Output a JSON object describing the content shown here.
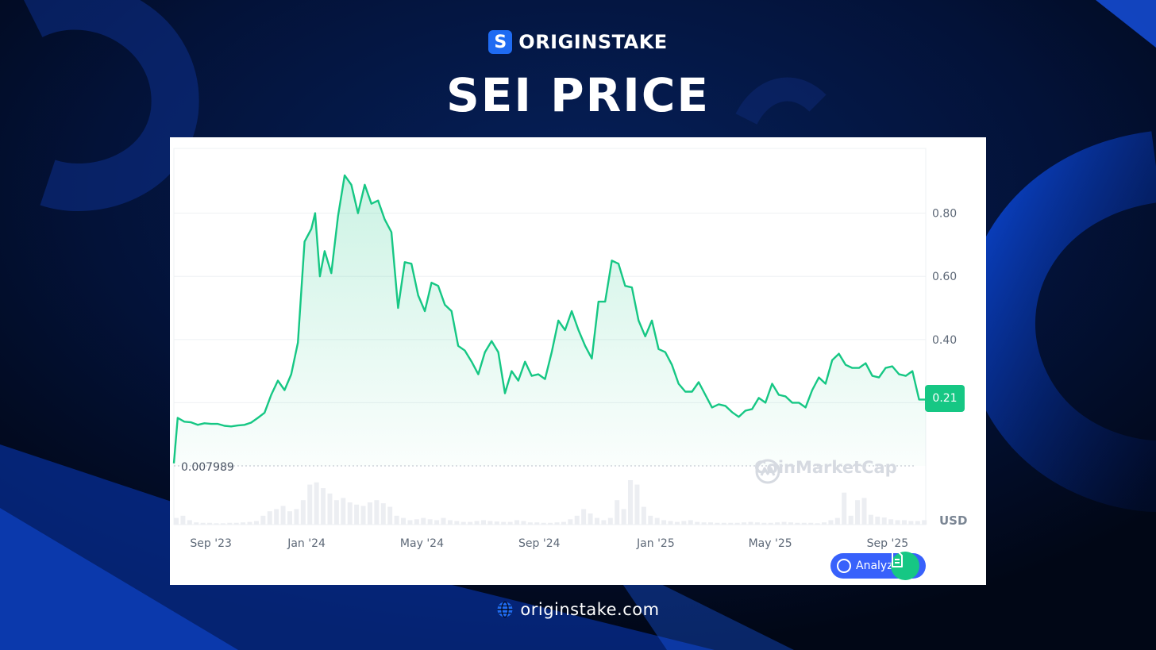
{
  "brand": {
    "logo_letter": "S",
    "name": "ORIGINSTAKE",
    "color": "#1f6bf2"
  },
  "title": "SEI PRICE",
  "footer": {
    "icon": "globe-icon",
    "url": "originstake.com"
  },
  "chart_data": {
    "type": "area",
    "title": "",
    "xlabel": "",
    "ylabel": "USD",
    "y_ticks": [
      "0.80",
      "0.60",
      "0.40"
    ],
    "y_tick_values": [
      0.8,
      0.6,
      0.4,
      0.2
    ],
    "ylim": [
      0.0,
      0.98
    ],
    "x_tick_labels": [
      "Sep '23",
      "Jan '24",
      "May '24",
      "Sep '24",
      "Jan '25",
      "May '25",
      "Sep '25"
    ],
    "x_tick_dates": [
      "2023-09-01",
      "2024-01-01",
      "2024-05-01",
      "2024-09-01",
      "2025-01-01",
      "2025-05-01",
      "2025-09-01"
    ],
    "current_price": "0.21",
    "min_label": "0.007989",
    "line_color": "#16c784",
    "grid": true,
    "watermark": "CoinMarketCap",
    "analyze_label": "Analyze",
    "series": [
      {
        "dates": [
          "2023-08-15",
          "2023-08-19",
          "2023-08-26",
          "2023-09-02",
          "2023-09-09",
          "2023-09-16",
          "2023-09-23",
          "2023-09-30",
          "2023-10-07",
          "2023-10-14",
          "2023-10-21",
          "2023-10-28",
          "2023-11-04",
          "2023-11-11",
          "2023-11-18",
          "2023-11-25",
          "2023-12-02",
          "2023-12-09",
          "2023-12-16",
          "2023-12-23",
          "2023-12-30",
          "2024-01-06",
          "2024-01-10",
          "2024-01-15",
          "2024-01-20",
          "2024-01-27",
          "2024-02-03",
          "2024-02-10",
          "2024-02-17",
          "2024-02-24",
          "2024-03-02",
          "2024-03-09",
          "2024-03-16",
          "2024-03-23",
          "2024-03-30",
          "2024-04-06",
          "2024-04-13",
          "2024-04-20",
          "2024-04-27",
          "2024-05-04",
          "2024-05-11",
          "2024-05-18",
          "2024-05-25",
          "2024-06-01",
          "2024-06-08",
          "2024-06-15",
          "2024-06-22",
          "2024-06-29",
          "2024-07-06",
          "2024-07-13",
          "2024-07-20",
          "2024-07-27",
          "2024-08-03",
          "2024-08-10",
          "2024-08-17",
          "2024-08-24",
          "2024-08-31",
          "2024-09-07",
          "2024-09-14",
          "2024-09-21",
          "2024-09-28",
          "2024-10-05",
          "2024-10-12",
          "2024-10-19",
          "2024-10-26",
          "2024-11-02",
          "2024-11-09",
          "2024-11-16",
          "2024-11-23",
          "2024-11-30",
          "2024-12-07",
          "2024-12-14",
          "2024-12-21",
          "2024-12-28",
          "2025-01-04",
          "2025-01-11",
          "2025-01-18",
          "2025-01-25",
          "2025-02-01",
          "2025-02-08",
          "2025-02-15",
          "2025-02-22",
          "2025-03-01",
          "2025-03-08",
          "2025-03-15",
          "2025-03-22",
          "2025-03-29",
          "2025-04-05",
          "2025-04-12",
          "2025-04-19",
          "2025-04-26",
          "2025-05-03",
          "2025-05-10",
          "2025-05-17",
          "2025-05-24",
          "2025-05-31",
          "2025-06-07",
          "2025-06-14",
          "2025-06-21",
          "2025-06-28",
          "2025-07-05",
          "2025-07-12",
          "2025-07-19",
          "2025-07-26",
          "2025-08-02",
          "2025-08-09",
          "2025-08-16",
          "2025-08-23",
          "2025-08-30",
          "2025-09-06",
          "2025-09-13",
          "2025-09-20",
          "2025-09-27",
          "2025-10-04",
          "2025-10-11"
        ],
        "values": [
          0.008,
          0.152,
          0.14,
          0.138,
          0.13,
          0.135,
          0.133,
          0.133,
          0.127,
          0.125,
          0.128,
          0.13,
          0.137,
          0.152,
          0.168,
          0.225,
          0.27,
          0.24,
          0.29,
          0.39,
          0.71,
          0.75,
          0.8,
          0.6,
          0.68,
          0.61,
          0.79,
          0.92,
          0.89,
          0.8,
          0.89,
          0.83,
          0.84,
          0.78,
          0.74,
          0.5,
          0.645,
          0.64,
          0.54,
          0.49,
          0.58,
          0.57,
          0.51,
          0.49,
          0.38,
          0.365,
          0.33,
          0.29,
          0.36,
          0.395,
          0.36,
          0.23,
          0.3,
          0.27,
          0.33,
          0.285,
          0.29,
          0.275,
          0.36,
          0.46,
          0.43,
          0.49,
          0.43,
          0.38,
          0.34,
          0.52,
          0.52,
          0.65,
          0.64,
          0.57,
          0.565,
          0.46,
          0.41,
          0.46,
          0.37,
          0.36,
          0.32,
          0.26,
          0.235,
          0.235,
          0.265,
          0.225,
          0.185,
          0.195,
          0.19,
          0.17,
          0.155,
          0.175,
          0.18,
          0.215,
          0.2,
          0.26,
          0.225,
          0.22,
          0.2,
          0.2,
          0.185,
          0.24,
          0.28,
          0.26,
          0.335,
          0.355,
          0.32,
          0.31,
          0.31,
          0.325,
          0.285,
          0.28,
          0.31,
          0.315,
          0.29,
          0.285,
          0.3,
          0.21,
          0.21
        ]
      }
    ],
    "volume": {
      "dates": [
        "2023-08-15",
        "2023-08-22",
        "2023-08-29",
        "2023-09-05",
        "2023-09-12",
        "2023-09-19",
        "2023-09-26",
        "2023-10-03",
        "2023-10-10",
        "2023-10-17",
        "2023-10-24",
        "2023-10-31",
        "2023-11-07",
        "2023-11-14",
        "2023-11-21",
        "2023-11-28",
        "2023-12-05",
        "2023-12-12",
        "2023-12-19",
        "2023-12-26",
        "2024-01-02",
        "2024-01-09",
        "2024-01-16",
        "2024-01-23",
        "2024-01-30",
        "2024-02-06",
        "2024-02-13",
        "2024-02-20",
        "2024-02-27",
        "2024-03-05",
        "2024-03-12",
        "2024-03-19",
        "2024-03-26",
        "2024-04-02",
        "2024-04-09",
        "2024-04-16",
        "2024-04-23",
        "2024-04-30",
        "2024-05-07",
        "2024-05-14",
        "2024-05-21",
        "2024-05-28",
        "2024-06-04",
        "2024-06-11",
        "2024-06-18",
        "2024-06-25",
        "2024-07-02",
        "2024-07-09",
        "2024-07-16",
        "2024-07-23",
        "2024-07-30",
        "2024-08-06",
        "2024-08-13",
        "2024-08-20",
        "2024-08-27",
        "2024-09-03",
        "2024-09-10",
        "2024-09-17",
        "2024-09-24",
        "2024-10-01",
        "2024-10-08",
        "2024-10-15",
        "2024-10-22",
        "2024-10-29",
        "2024-11-05",
        "2024-11-12",
        "2024-11-19",
        "2024-11-26",
        "2024-12-03",
        "2024-12-10",
        "2024-12-17",
        "2024-12-24",
        "2024-12-31",
        "2025-01-07",
        "2025-01-14",
        "2025-01-21",
        "2025-01-28",
        "2025-02-04",
        "2025-02-11",
        "2025-02-18",
        "2025-02-25",
        "2025-03-04",
        "2025-03-11",
        "2025-03-18",
        "2025-03-25",
        "2025-04-01",
        "2025-04-08",
        "2025-04-15",
        "2025-04-22",
        "2025-04-29",
        "2025-05-06",
        "2025-05-13",
        "2025-05-20",
        "2025-05-27",
        "2025-06-03",
        "2025-06-10",
        "2025-06-17",
        "2025-06-24",
        "2025-07-01",
        "2025-07-08",
        "2025-07-15",
        "2025-07-22",
        "2025-07-29",
        "2025-08-05",
        "2025-08-12",
        "2025-08-19",
        "2025-08-26",
        "2025-09-02",
        "2025-09-09",
        "2025-09-16",
        "2025-09-23",
        "2025-09-30",
        "2025-10-07"
      ],
      "values": [
        0.15,
        0.2,
        0.1,
        0.05,
        0.04,
        0.04,
        0.03,
        0.03,
        0.04,
        0.04,
        0.05,
        0.06,
        0.08,
        0.2,
        0.3,
        0.35,
        0.42,
        0.3,
        0.35,
        0.55,
        0.9,
        0.95,
        0.82,
        0.7,
        0.55,
        0.6,
        0.5,
        0.45,
        0.42,
        0.5,
        0.55,
        0.48,
        0.4,
        0.2,
        0.15,
        0.1,
        0.12,
        0.15,
        0.12,
        0.1,
        0.15,
        0.1,
        0.08,
        0.06,
        0.06,
        0.08,
        0.1,
        0.08,
        0.07,
        0.06,
        0.06,
        0.1,
        0.08,
        0.05,
        0.05,
        0.04,
        0.04,
        0.05,
        0.06,
        0.12,
        0.2,
        0.35,
        0.25,
        0.15,
        0.1,
        0.15,
        0.55,
        0.35,
        1.0,
        0.9,
        0.4,
        0.2,
        0.15,
        0.1,
        0.08,
        0.06,
        0.08,
        0.1,
        0.06,
        0.05,
        0.05,
        0.04,
        0.04,
        0.04,
        0.04,
        0.05,
        0.06,
        0.05,
        0.04,
        0.04,
        0.05,
        0.06,
        0.05,
        0.04,
        0.04,
        0.04,
        0.03,
        0.05,
        0.1,
        0.15,
        0.72,
        0.2,
        0.55,
        0.6,
        0.22,
        0.18,
        0.16,
        0.12,
        0.1,
        0.1,
        0.08,
        0.08,
        0.1
      ]
    }
  }
}
